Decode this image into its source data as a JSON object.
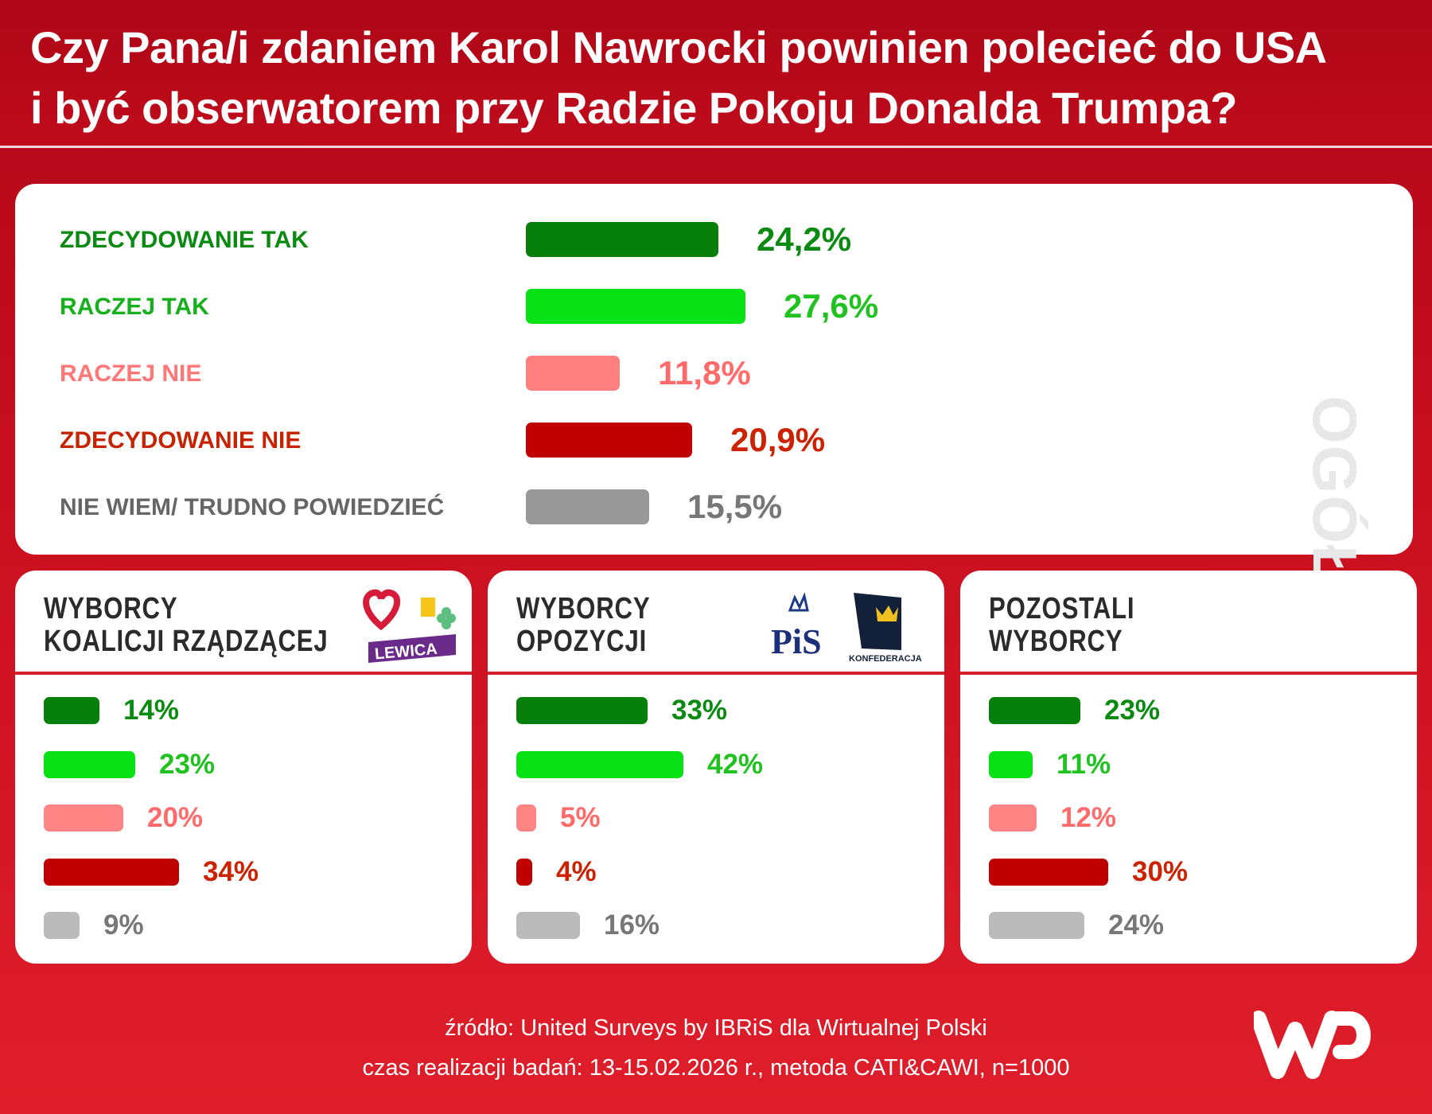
{
  "title_lines": [
    "Czy Pana/i zdaniem Karol Nawrocki powinien polecieć do USA",
    "i być obserwatorem przy Radzie Pokoju Donalda Trumpa?"
  ],
  "colors": {
    "bars": [
      "#067f0b",
      "#08e113",
      "#ff7f7f",
      "#c00000",
      "#999999"
    ],
    "panel_bars": [
      "#067f0b",
      "#08e113",
      "#ff8585",
      "#c00000",
      "#bbbbbb"
    ],
    "labels": [
      "#0b8a12",
      "#16b01c",
      "#ff7777",
      "#c62400",
      "#666666"
    ],
    "values": [
      "#0b8a12",
      "#1fc21e",
      "#ff6b6b",
      "#cc2200",
      "#777777"
    ]
  },
  "chart_data": [
    {
      "type": "bar",
      "orientation": "horizontal",
      "title": "OGÓŁEM",
      "categories": [
        "ZDECYDOWANIE TAK",
        "RACZEJ TAK",
        "RACZEJ NIE",
        "ZDECYDOWANIE NIE",
        "NIE WIEM/ TRUDNO POWIEDZIEĆ"
      ],
      "values": [
        24.2,
        27.6,
        11.8,
        20.9,
        15.5
      ],
      "value_labels": [
        "24,2%",
        "27,6%",
        "11,8%",
        "20,9%",
        "15,5%"
      ]
    },
    {
      "type": "bar",
      "orientation": "horizontal",
      "title": [
        "WYBORCY",
        "KOALICJI RZĄDZĄCEJ"
      ],
      "values": [
        14,
        23,
        20,
        34,
        9
      ],
      "value_labels": [
        "14%",
        "23%",
        "20%",
        "34%",
        "9%"
      ]
    },
    {
      "type": "bar",
      "orientation": "horizontal",
      "title": [
        "WYBORCY",
        "OPOZYCJI"
      ],
      "values": [
        33,
        42,
        5,
        4,
        16
      ],
      "value_labels": [
        "33%",
        "42%",
        "5%",
        "4%",
        "16%"
      ]
    },
    {
      "type": "bar",
      "orientation": "horizontal",
      "title": [
        "POZOSTALI",
        "WYBORCY"
      ],
      "values": [
        23,
        11,
        12,
        30,
        24
      ],
      "value_labels": [
        "23%",
        "11%",
        "12%",
        "30%",
        "24%"
      ]
    }
  ],
  "logos": {
    "lewica": "LEWICA",
    "pis": "PiS",
    "konfederacja": "KONFEDERACJA",
    "wp": "WP"
  },
  "footer": {
    "source": "źródło: United Surveys by IBRiS dla Wirtualnej Polski",
    "method": "czas realizacji badań: 13-15.02.2026 r., metoda CATI&CAWI, n=1000"
  }
}
